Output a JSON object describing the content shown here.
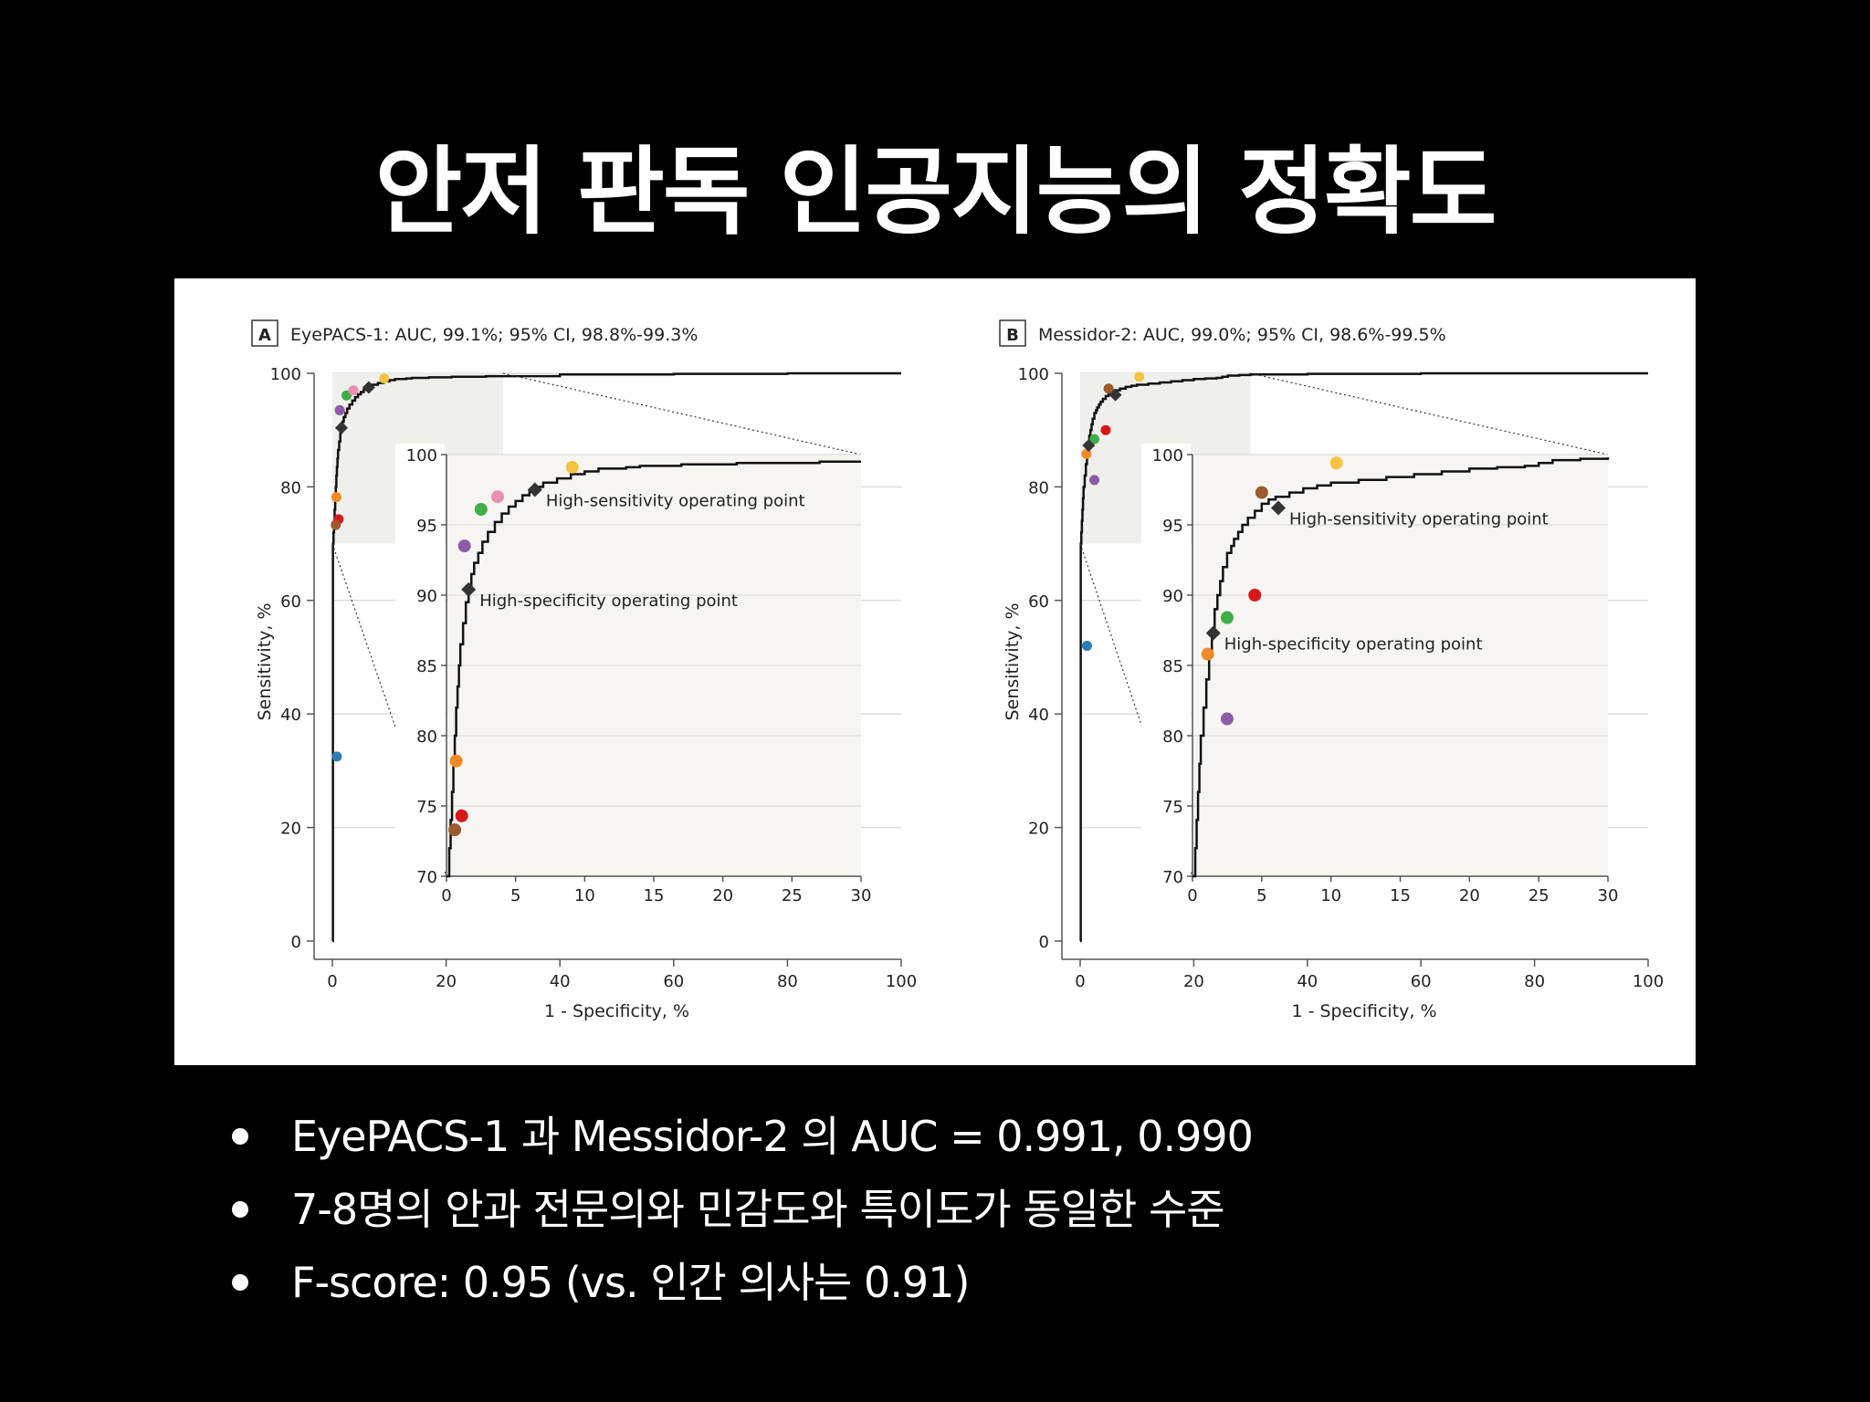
{
  "slide": {
    "title": "안저 판독 인공지능의 정확도",
    "bullets": [
      "EyePACS-1 과 Messidor-2 의 AUC = 0.991, 0.990",
      "7-8명의 안과 전문의와 민감도와 특이도가 동일한 수준",
      "F-score: 0.95 (vs. 인간 의사는 0.91)"
    ]
  },
  "colors": {
    "curve": "#111111",
    "inset_bg": "#f6f5f2",
    "grid": "#dcdcdc",
    "blue": "#2c7bb6",
    "orange": "#f08a24",
    "red": "#d7191c",
    "brown": "#9c5a2e",
    "purple": "#8e5ba8",
    "green": "#3fae49",
    "pink": "#e98fb3",
    "yellow": "#f5c342"
  },
  "chart_data": [
    {
      "type": "line",
      "panel_letter": "A",
      "title": "EyePACS-1: AUC, 99.1%; 95% CI, 98.8%-99.3%",
      "xlabel": "1 - Specificity, %",
      "ylabel": "Sensitivity, %",
      "xlim": [
        0,
        100
      ],
      "ylim": [
        0,
        100
      ],
      "x_ticks": [
        "0",
        "20",
        "40",
        "60",
        "80",
        "100"
      ],
      "y_ticks": [
        "0",
        "20",
        "40",
        "60",
        "80",
        "100"
      ],
      "inset": {
        "xlim": [
          0,
          30
        ],
        "ylim": [
          70,
          100
        ],
        "x_ticks": [
          "0",
          "5",
          "10",
          "15",
          "20",
          "25",
          "30"
        ],
        "y_ticks": [
          "70",
          "75",
          "80",
          "85",
          "90",
          "95",
          "100"
        ]
      },
      "roc_curve": {
        "x": [
          0,
          0.1,
          0.2,
          0.3,
          0.4,
          0.5,
          0.6,
          0.7,
          0.8,
          0.9,
          1.0,
          1.2,
          1.4,
          1.6,
          1.8,
          2.0,
          2.3,
          2.6,
          3.0,
          3.5,
          4.0,
          4.5,
          5.0,
          5.5,
          6.0,
          6.5,
          7.0,
          8.0,
          9.0,
          10,
          11,
          12,
          13,
          14,
          15,
          17,
          19,
          21,
          23,
          25,
          27,
          28,
          30,
          40,
          60,
          80,
          100
        ],
        "y": [
          0,
          70.0,
          72.0,
          74.0,
          76.0,
          78.0,
          80.0,
          82.0,
          83.5,
          85.0,
          86.5,
          88.0,
          89.5,
          90.5,
          91.5,
          92.3,
          93.0,
          93.8,
          94.5,
          95.2,
          95.8,
          96.3,
          96.7,
          97.1,
          97.4,
          97.7,
          98.0,
          98.3,
          98.6,
          98.8,
          99.0,
          99.0,
          99.1,
          99.2,
          99.2,
          99.3,
          99.3,
          99.4,
          99.4,
          99.4,
          99.5,
          99.5,
          99.5,
          99.8,
          99.9,
          100,
          100
        ]
      },
      "operating_points": [
        {
          "label": "High-sensitivity operating point",
          "x": 6.4,
          "y": 97.5
        },
        {
          "label": "High-specificity operating point",
          "x": 1.6,
          "y": 90.4
        }
      ],
      "ophthalmologists": [
        {
          "color": "blue",
          "x": 0.8,
          "y": 32.5
        },
        {
          "color": "orange",
          "x": 0.7,
          "y": 78.2
        },
        {
          "color": "red",
          "x": 1.1,
          "y": 74.3
        },
        {
          "color": "brown",
          "x": 0.6,
          "y": 73.3
        },
        {
          "color": "purple",
          "x": 1.3,
          "y": 93.5
        },
        {
          "color": "green",
          "x": 2.5,
          "y": 96.1
        },
        {
          "color": "pink",
          "x": 3.7,
          "y": 97.0
        },
        {
          "color": "yellow",
          "x": 9.1,
          "y": 99.1
        }
      ]
    },
    {
      "type": "line",
      "panel_letter": "B",
      "title": "Messidor-2: AUC, 99.0%; 95% CI, 98.6%-99.5%",
      "xlabel": "1 - Specificity, %",
      "ylabel": "Sensitivity, %",
      "xlim": [
        0,
        100
      ],
      "ylim": [
        0,
        100
      ],
      "x_ticks": [
        "0",
        "20",
        "40",
        "60",
        "80",
        "100"
      ],
      "y_ticks": [
        "0",
        "20",
        "40",
        "60",
        "80",
        "100"
      ],
      "inset": {
        "xlim": [
          0,
          30
        ],
        "ylim": [
          70,
          100
        ],
        "x_ticks": [
          "0",
          "5",
          "10",
          "15",
          "20",
          "25",
          "30"
        ],
        "y_ticks": [
          "70",
          "75",
          "80",
          "85",
          "90",
          "95",
          "100"
        ]
      },
      "roc_curve": {
        "x": [
          0,
          0.1,
          0.2,
          0.3,
          0.4,
          0.5,
          0.6,
          0.8,
          1.0,
          1.2,
          1.4,
          1.6,
          1.8,
          2.0,
          2.2,
          2.5,
          2.8,
          3.0,
          3.3,
          3.6,
          4.0,
          4.5,
          5.0,
          5.5,
          6.0,
          7.0,
          8.0,
          9.0,
          10.0,
          11,
          12,
          14,
          16,
          18,
          20,
          22,
          24,
          25,
          26,
          28,
          30,
          40,
          60,
          80,
          100
        ],
        "y": [
          0,
          70.0,
          72.0,
          74.0,
          76.0,
          78.0,
          80.0,
          82.0,
          84.0,
          86.0,
          87.5,
          89.0,
          90.0,
          91.0,
          92.0,
          93.0,
          93.5,
          94.0,
          94.5,
          95.0,
          95.5,
          96.0,
          96.5,
          96.8,
          97.0,
          97.3,
          97.6,
          97.8,
          98.0,
          98.0,
          98.2,
          98.4,
          98.6,
          98.8,
          99.0,
          99.1,
          99.2,
          99.4,
          99.6,
          99.7,
          99.8,
          99.9,
          100,
          100,
          100
        ]
      },
      "operating_points": [
        {
          "label": "High-sensitivity operating point",
          "x": 6.2,
          "y": 96.2
        },
        {
          "label": "High-specificity operating point",
          "x": 1.5,
          "y": 87.3
        }
      ],
      "ophthalmologists": [
        {
          "color": "blue",
          "x": 1.2,
          "y": 52.0
        },
        {
          "color": "orange",
          "x": 1.1,
          "y": 85.8
        },
        {
          "color": "red",
          "x": 4.5,
          "y": 90.0
        },
        {
          "color": "brown",
          "x": 5.0,
          "y": 97.3
        },
        {
          "color": "purple",
          "x": 2.5,
          "y": 81.2
        },
        {
          "color": "green",
          "x": 2.5,
          "y": 88.4
        },
        {
          "color": "yellow",
          "x": 10.4,
          "y": 99.4
        }
      ]
    }
  ]
}
